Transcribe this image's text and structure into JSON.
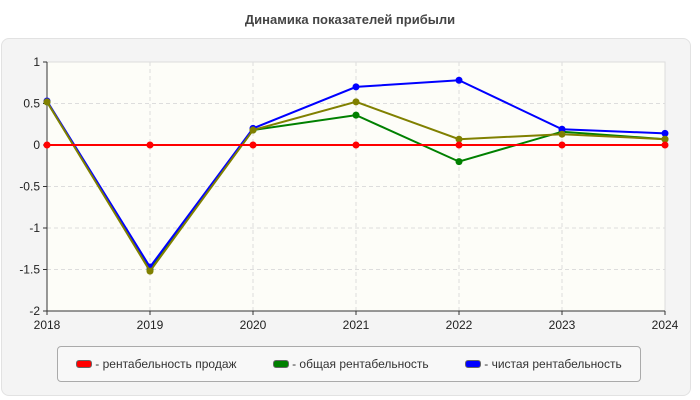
{
  "chart_data": {
    "type": "line",
    "title": "Динамика показателей прибыли",
    "x": [
      "2018",
      "2019",
      "2020",
      "2021",
      "2022",
      "2023",
      "2024"
    ],
    "ylim": [
      -2,
      1
    ],
    "yticks": [
      "1",
      "0.5",
      "0",
      "-0.5",
      "-1",
      "-1.5",
      "-2"
    ],
    "grid": true,
    "legend_placement": "bottom",
    "series": [
      {
        "name": "- рентабельность продаж",
        "color": "#ff0000",
        "values": [
          0,
          0,
          0,
          0,
          0,
          0,
          0
        ]
      },
      {
        "name": "- общая рентабельность",
        "color": "#008000",
        "values": [
          0.52,
          -1.5,
          0.18,
          0.36,
          -0.2,
          0.16,
          0.07
        ]
      },
      {
        "name": "- чистая рентабельность",
        "color": "#0000ff",
        "values": [
          0.53,
          -1.47,
          0.2,
          0.7,
          0.78,
          0.19,
          0.14
        ]
      },
      {
        "color": "#808000",
        "values": [
          0.52,
          -1.52,
          0.18,
          0.52,
          0.07,
          0.13,
          0.07
        ]
      }
    ]
  }
}
